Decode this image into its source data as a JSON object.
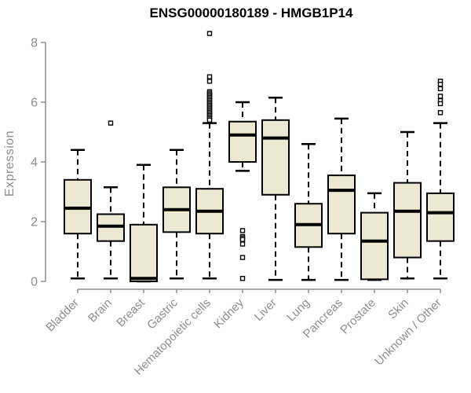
{
  "chart_data": {
    "type": "box",
    "title": "ENSG00000180189 - HMGB1P14",
    "xlabel": "",
    "ylabel": "Expression",
    "ylim": [
      0,
      8
    ],
    "yticks": [
      0,
      2,
      4,
      6,
      8
    ],
    "grid": false,
    "legend": "none",
    "categories": [
      "Bladder",
      "Brain",
      "Breast",
      "Gastric",
      "Hematopoietic cells",
      "Kidney",
      "Liver",
      "Lung",
      "Pancreas",
      "Prostate",
      "Skin",
      "Unknown / Other"
    ],
    "series": [
      {
        "category": "Bladder",
        "whisker_low": 0.1,
        "q1": 1.6,
        "median": 2.45,
        "q3": 3.4,
        "whisker_high": 4.4,
        "outliers": []
      },
      {
        "category": "Brain",
        "whisker_low": 0.1,
        "q1": 1.35,
        "median": 1.85,
        "q3": 2.25,
        "whisker_high": 3.15,
        "outliers": [
          5.3
        ]
      },
      {
        "category": "Breast",
        "whisker_low": 0.0,
        "q1": 0.0,
        "median": 0.1,
        "q3": 1.9,
        "whisker_high": 3.9,
        "outliers": []
      },
      {
        "category": "Gastric",
        "whisker_low": 0.1,
        "q1": 1.65,
        "median": 2.4,
        "q3": 3.15,
        "whisker_high": 4.4,
        "outliers": []
      },
      {
        "category": "Hematopoietic cells",
        "whisker_low": 0.1,
        "q1": 1.6,
        "median": 2.35,
        "q3": 3.1,
        "whisker_high": 5.3,
        "outliers": [
          8.3,
          6.85,
          6.7,
          6.35,
          6.3,
          6.25,
          6.2,
          6.15,
          6.1,
          6.05,
          6.0,
          5.95,
          5.9,
          5.85,
          5.8,
          5.75,
          5.7,
          5.65,
          5.6,
          5.55,
          5.5,
          5.45,
          5.4
        ]
      },
      {
        "category": "Kidney",
        "whisker_low": 3.7,
        "q1": 4.0,
        "median": 4.9,
        "q3": 5.35,
        "whisker_high": 6.0,
        "outliers": [
          1.7,
          1.5,
          1.45,
          1.4,
          1.25,
          0.8,
          0.1
        ]
      },
      {
        "category": "Liver",
        "whisker_low": 0.05,
        "q1": 2.9,
        "median": 4.8,
        "q3": 5.4,
        "whisker_high": 6.15,
        "outliers": []
      },
      {
        "category": "Lung",
        "whisker_low": 0.05,
        "q1": 1.15,
        "median": 1.9,
        "q3": 2.6,
        "whisker_high": 4.6,
        "outliers": []
      },
      {
        "category": "Pancreas",
        "whisker_low": 0.05,
        "q1": 1.6,
        "median": 3.05,
        "q3": 3.55,
        "whisker_high": 5.45,
        "outliers": []
      },
      {
        "category": "Prostate",
        "whisker_low": 0.05,
        "q1": 0.07,
        "median": 1.35,
        "q3": 2.3,
        "whisker_high": 2.95,
        "outliers": []
      },
      {
        "category": "Skin",
        "whisker_low": 0.1,
        "q1": 0.8,
        "median": 2.35,
        "q3": 3.3,
        "whisker_high": 5.0,
        "outliers": []
      },
      {
        "category": "Unknown / Other",
        "whisker_low": 0.1,
        "q1": 1.35,
        "median": 2.3,
        "q3": 2.95,
        "whisker_high": 5.3,
        "outliers": [
          6.7,
          6.6,
          6.45,
          6.2,
          6.05,
          5.95,
          5.65
        ]
      }
    ],
    "colors": {
      "box_fill": "#ece8d1",
      "box_border": "#000000",
      "median": "#000000",
      "whisker": "#000000",
      "outlier_stroke": "#000000",
      "outlier_fill": "#ffffff",
      "axis": "#8e8e8e",
      "tick_label": "#8e8e8e",
      "title": "#000000",
      "background": "#ffffff"
    }
  }
}
